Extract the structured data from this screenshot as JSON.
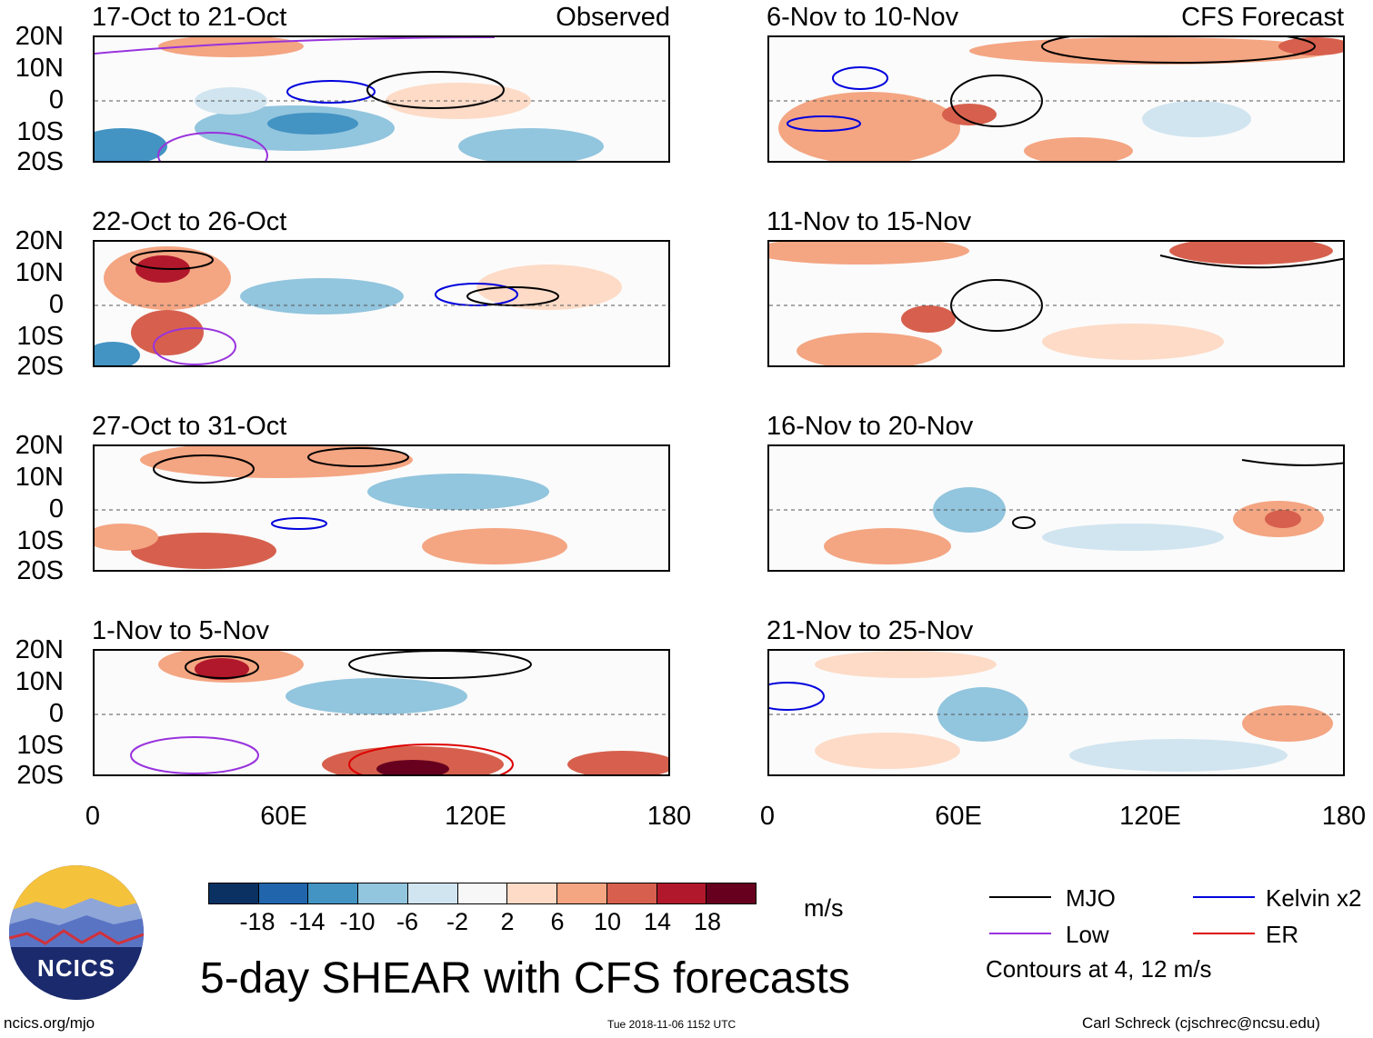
{
  "panels": [
    {
      "title": "17-Oct to 21-Oct",
      "label": "Observed"
    },
    {
      "title": "6-Nov to 10-Nov",
      "label": "CFS Forecast"
    },
    {
      "title": "22-Oct to 26-Oct",
      "label": ""
    },
    {
      "title": "11-Nov to 15-Nov",
      "label": ""
    },
    {
      "title": "27-Oct to 31-Oct",
      "label": ""
    },
    {
      "title": "16-Nov to 20-Nov",
      "label": ""
    },
    {
      "title": "1-Nov to 5-Nov",
      "label": ""
    },
    {
      "title": "21-Nov to 25-Nov",
      "label": ""
    }
  ],
  "lat_labels": [
    "20N",
    "10N",
    "0",
    "10S",
    "20S"
  ],
  "lon_labels": [
    "0",
    "60E",
    "120E",
    "180"
  ],
  "colorbar": {
    "unit": "m/s",
    "ticks": [
      "-18",
      "-14",
      "-10",
      "-6",
      "-2",
      "2",
      "6",
      "10",
      "14",
      "18"
    ],
    "colors": [
      "#0a3161",
      "#2166ac",
      "#4393c3",
      "#92c5de",
      "#d1e5f0",
      "#f7f7f7",
      "#fddbc7",
      "#f4a582",
      "#d6604d",
      "#b2182b",
      "#67001f"
    ]
  },
  "legend": {
    "mjo": "MJO",
    "kelvin": "Kelvin x2",
    "low": "Low",
    "er": "ER",
    "contours": "Contours at 4, 12 m/s",
    "colors": {
      "mjo": "#000000",
      "kelvin": "#0000dd",
      "low": "#9933dd",
      "er": "#dd0000"
    }
  },
  "title": "5-day SHEAR with CFS forecasts",
  "logo_text": "NCICS",
  "footer": {
    "url": "ncics.org/mjo",
    "timestamp": "Tue 2018-11-06 1152 UTC",
    "author": "Carl Schreck (cjschrec@ncsu.edu)"
  }
}
